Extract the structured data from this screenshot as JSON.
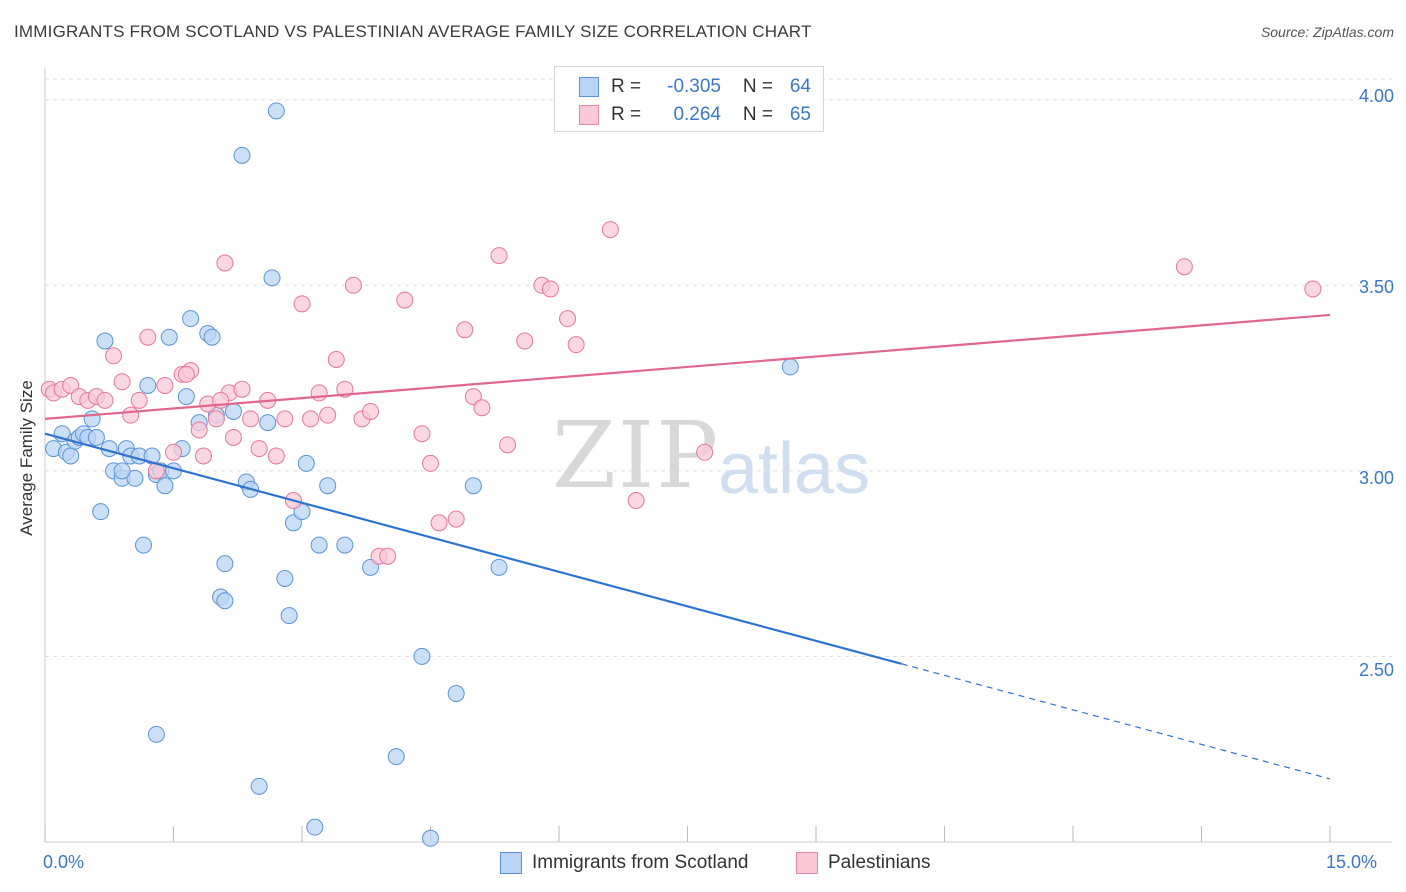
{
  "header": {
    "title": "IMMIGRANTS FROM SCOTLAND VS PALESTINIAN AVERAGE FAMILY SIZE CORRELATION CHART",
    "source": "Source: ZipAtlas.com"
  },
  "watermark": {
    "zip": "ZIP",
    "atlas": "atlas"
  },
  "legend": {
    "rows": [
      {
        "r_label": "R =",
        "r_value": "-0.305",
        "n_label": "N =",
        "n_value": "64",
        "color": "#a9c8f0",
        "border": "#5b93d6"
      },
      {
        "r_label": "R =",
        "r_value": "0.264",
        "n_label": "N =",
        "n_value": "65",
        "color": "#f8bfd0",
        "border": "#e58aa6"
      }
    ]
  },
  "bottom_legend": [
    {
      "label": "Immigrants from Scotland",
      "color": "#b9d4f4",
      "border": "#5b93d6"
    },
    {
      "label": "Palestinians",
      "color": "#f9c9d7",
      "border": "#e58aa6"
    }
  ],
  "chart_data": {
    "type": "scatter",
    "title": "IMMIGRANTS FROM SCOTLAND VS PALESTINIAN AVERAGE FAMILY SIZE CORRELATION CHART",
    "xlabel": "",
    "ylabel": "Average Family Size",
    "xlim": [
      0.0,
      15.0
    ],
    "ylim": [
      2.0,
      4.08
    ],
    "x_tick_labels": [
      "0.0%",
      "15.0%"
    ],
    "y_ticks": [
      2.5,
      3.0,
      3.5,
      4.0
    ],
    "y_tick_labels": [
      "2.50",
      "3.00",
      "3.50",
      "4.00"
    ],
    "grid": "horizontal dashed",
    "series": [
      {
        "name": "Immigrants from Scotland",
        "color": "#5b93d6",
        "fill": "#b9d4f4",
        "trend": {
          "x0": 0.0,
          "y0": 3.1,
          "x1": 10.0,
          "y1": 2.48,
          "dashed_to_x": 15.0,
          "dashed_to_y": 2.17
        },
        "points": [
          [
            0.1,
            3.06
          ],
          [
            0.2,
            3.1
          ],
          [
            0.25,
            3.05
          ],
          [
            0.3,
            3.04
          ],
          [
            0.35,
            3.08
          ],
          [
            0.4,
            3.09
          ],
          [
            0.45,
            3.1
          ],
          [
            0.5,
            3.09
          ],
          [
            0.55,
            3.14
          ],
          [
            0.6,
            3.09
          ],
          [
            0.7,
            3.35
          ],
          [
            0.8,
            3.0
          ],
          [
            0.9,
            2.98
          ],
          [
            0.95,
            3.06
          ],
          [
            1.0,
            3.04
          ],
          [
            1.05,
            2.98
          ],
          [
            1.1,
            3.04
          ],
          [
            1.2,
            3.23
          ],
          [
            1.25,
            3.04
          ],
          [
            1.3,
            2.99
          ],
          [
            1.35,
            3.0
          ],
          [
            1.4,
            2.96
          ],
          [
            1.45,
            3.36
          ],
          [
            1.5,
            3.0
          ],
          [
            1.6,
            3.06
          ],
          [
            1.65,
            3.2
          ],
          [
            1.7,
            3.41
          ],
          [
            1.8,
            3.13
          ],
          [
            1.9,
            3.37
          ],
          [
            1.95,
            3.36
          ],
          [
            2.0,
            3.15
          ],
          [
            2.05,
            2.66
          ],
          [
            2.1,
            2.75
          ],
          [
            2.2,
            3.16
          ],
          [
            2.3,
            3.85
          ],
          [
            2.35,
            2.97
          ],
          [
            2.4,
            2.95
          ],
          [
            2.5,
            2.15
          ],
          [
            2.6,
            3.13
          ],
          [
            2.65,
            3.52
          ],
          [
            2.7,
            3.97
          ],
          [
            2.8,
            2.71
          ],
          [
            2.85,
            2.61
          ],
          [
            2.9,
            2.86
          ],
          [
            3.0,
            2.89
          ],
          [
            3.05,
            3.02
          ],
          [
            3.15,
            2.04
          ],
          [
            3.2,
            2.8
          ],
          [
            3.3,
            2.96
          ],
          [
            3.5,
            2.8
          ],
          [
            3.8,
            2.74
          ],
          [
            4.1,
            2.23
          ],
          [
            4.4,
            2.5
          ],
          [
            4.5,
            2.01
          ],
          [
            4.8,
            2.4
          ],
          [
            5.0,
            2.96
          ],
          [
            5.3,
            2.74
          ],
          [
            8.7,
            3.28
          ],
          [
            0.75,
            3.06
          ],
          [
            1.15,
            2.8
          ],
          [
            0.65,
            2.89
          ],
          [
            0.9,
            3.0
          ],
          [
            1.3,
            2.29
          ],
          [
            2.1,
            2.65
          ]
        ]
      },
      {
        "name": "Palestinians",
        "color": "#e8769b",
        "fill": "#f9c9d7",
        "trend": {
          "x0": 0.0,
          "y0": 3.14,
          "x1": 15.0,
          "y1": 3.42
        },
        "points": [
          [
            0.05,
            3.22
          ],
          [
            0.1,
            3.21
          ],
          [
            0.2,
            3.22
          ],
          [
            0.3,
            3.23
          ],
          [
            0.4,
            3.2
          ],
          [
            0.5,
            3.19
          ],
          [
            0.6,
            3.2
          ],
          [
            0.7,
            3.19
          ],
          [
            0.8,
            3.31
          ],
          [
            0.9,
            3.24
          ],
          [
            1.0,
            3.15
          ],
          [
            1.1,
            3.19
          ],
          [
            1.2,
            3.36
          ],
          [
            1.3,
            3.0
          ],
          [
            1.4,
            3.23
          ],
          [
            1.5,
            3.05
          ],
          [
            1.6,
            3.26
          ],
          [
            1.7,
            3.27
          ],
          [
            1.8,
            3.11
          ],
          [
            1.85,
            3.04
          ],
          [
            1.9,
            3.18
          ],
          [
            2.0,
            3.14
          ],
          [
            2.1,
            3.56
          ],
          [
            2.15,
            3.21
          ],
          [
            2.2,
            3.09
          ],
          [
            2.3,
            3.22
          ],
          [
            2.4,
            3.14
          ],
          [
            2.5,
            3.06
          ],
          [
            2.6,
            3.19
          ],
          [
            2.7,
            3.04
          ],
          [
            2.8,
            3.14
          ],
          [
            2.9,
            2.92
          ],
          [
            3.0,
            3.45
          ],
          [
            3.1,
            3.14
          ],
          [
            3.2,
            3.21
          ],
          [
            3.3,
            3.15
          ],
          [
            3.4,
            3.3
          ],
          [
            3.5,
            3.22
          ],
          [
            3.6,
            3.5
          ],
          [
            3.7,
            3.14
          ],
          [
            3.8,
            3.16
          ],
          [
            3.9,
            2.77
          ],
          [
            4.0,
            2.77
          ],
          [
            4.2,
            3.46
          ],
          [
            4.4,
            3.1
          ],
          [
            4.5,
            3.02
          ],
          [
            4.6,
            2.86
          ],
          [
            4.8,
            2.87
          ],
          [
            4.9,
            3.38
          ],
          [
            5.0,
            3.2
          ],
          [
            5.1,
            3.17
          ],
          [
            5.3,
            3.58
          ],
          [
            5.4,
            3.07
          ],
          [
            5.6,
            3.35
          ],
          [
            5.8,
            3.5
          ],
          [
            5.9,
            3.49
          ],
          [
            6.1,
            3.41
          ],
          [
            6.2,
            3.34
          ],
          [
            6.6,
            3.65
          ],
          [
            6.9,
            2.92
          ],
          [
            7.7,
            3.05
          ],
          [
            13.3,
            3.55
          ],
          [
            14.8,
            3.49
          ],
          [
            1.65,
            3.26
          ],
          [
            2.05,
            3.19
          ]
        ]
      }
    ]
  }
}
